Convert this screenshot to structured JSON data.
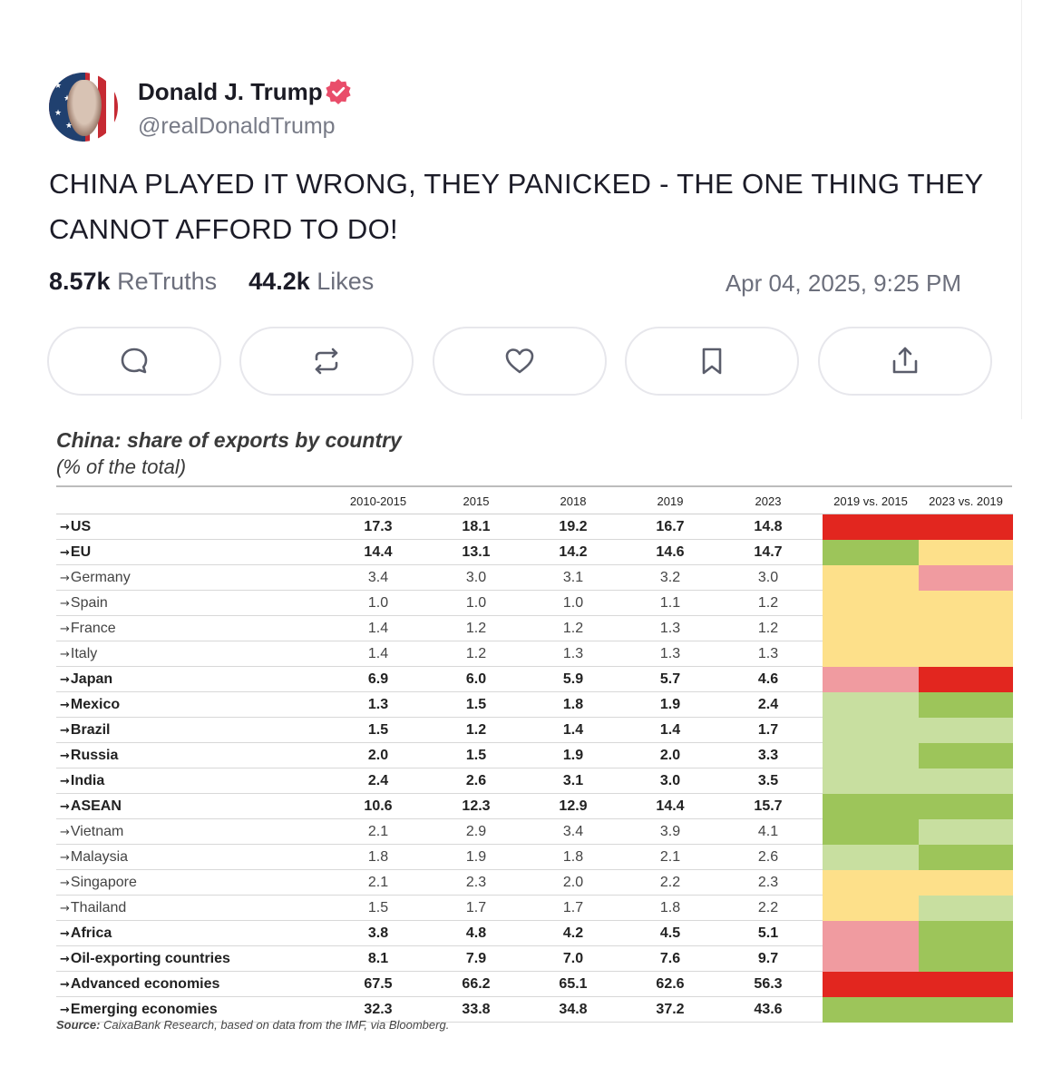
{
  "post": {
    "author_name": "Donald J. Trump",
    "handle": "@realDonaldTrump",
    "text": "CHINA PLAYED IT WRONG, THEY PANICKED - THE ONE THING THEY CANNOT AFFORD TO DO!",
    "retruths_count": "8.57k",
    "retruths_label": "ReTruths",
    "likes_count": "44.2k",
    "likes_label": "Likes",
    "timestamp": "Apr 04, 2025, 9:25 PM",
    "actions": [
      "reply-icon",
      "retruth-icon",
      "like-icon",
      "bookmark-icon",
      "share-icon"
    ],
    "colors": {
      "verified": "#e94d6a",
      "text": "#1c1c28",
      "muted": "#6c6f7c"
    }
  },
  "table": {
    "title": "China: share of exports by country",
    "subtitle": "(% of the total)",
    "headers": [
      "",
      "2010-2015",
      "2015",
      "2018",
      "2019",
      "2023",
      "2019 vs. 2015",
      "2023 vs. 2019"
    ],
    "rows": [
      {
        "country": "US",
        "bold": true,
        "values": [
          "17.3",
          "18.1",
          "19.2",
          "16.7",
          "14.8"
        ],
        "c1": "red",
        "c2": "red"
      },
      {
        "country": "EU",
        "bold": true,
        "values": [
          "14.4",
          "13.1",
          "14.2",
          "14.6",
          "14.7"
        ],
        "c1": "green",
        "c2": "yellow"
      },
      {
        "country": "Germany",
        "bold": false,
        "values": [
          "3.4",
          "3.0",
          "3.1",
          "3.2",
          "3.0"
        ],
        "c1": "yellow",
        "c2": "pink"
      },
      {
        "country": "Spain",
        "bold": false,
        "values": [
          "1.0",
          "1.0",
          "1.0",
          "1.1",
          "1.2"
        ],
        "c1": "yellow",
        "c2": "yellow"
      },
      {
        "country": "France",
        "bold": false,
        "values": [
          "1.4",
          "1.2",
          "1.2",
          "1.3",
          "1.2"
        ],
        "c1": "yellow",
        "c2": "yellow"
      },
      {
        "country": "Italy",
        "bold": false,
        "values": [
          "1.4",
          "1.2",
          "1.3",
          "1.3",
          "1.3"
        ],
        "c1": "yellow",
        "c2": "yellow"
      },
      {
        "country": "Japan",
        "bold": true,
        "values": [
          "6.9",
          "6.0",
          "5.9",
          "5.7",
          "4.6"
        ],
        "c1": "pink",
        "c2": "red"
      },
      {
        "country": "Mexico",
        "bold": true,
        "values": [
          "1.3",
          "1.5",
          "1.8",
          "1.9",
          "2.4"
        ],
        "c1": "lightgreen",
        "c2": "green"
      },
      {
        "country": "Brazil",
        "bold": true,
        "values": [
          "1.5",
          "1.2",
          "1.4",
          "1.4",
          "1.7"
        ],
        "c1": "lightgreen",
        "c2": "lightgreen"
      },
      {
        "country": "Russia",
        "bold": true,
        "values": [
          "2.0",
          "1.5",
          "1.9",
          "2.0",
          "3.3"
        ],
        "c1": "lightgreen",
        "c2": "green"
      },
      {
        "country": "India",
        "bold": true,
        "values": [
          "2.4",
          "2.6",
          "3.1",
          "3.0",
          "3.5"
        ],
        "c1": "lightgreen",
        "c2": "lightgreen"
      },
      {
        "country": "ASEAN",
        "bold": true,
        "values": [
          "10.6",
          "12.3",
          "12.9",
          "14.4",
          "15.7"
        ],
        "c1": "green",
        "c2": "green"
      },
      {
        "country": "Vietnam",
        "bold": false,
        "values": [
          "2.1",
          "2.9",
          "3.4",
          "3.9",
          "4.1"
        ],
        "c1": "green",
        "c2": "lightgreen"
      },
      {
        "country": "Malaysia",
        "bold": false,
        "values": [
          "1.8",
          "1.9",
          "1.8",
          "2.1",
          "2.6"
        ],
        "c1": "lightgreen",
        "c2": "green"
      },
      {
        "country": "Singapore",
        "bold": false,
        "values": [
          "2.1",
          "2.3",
          "2.0",
          "2.2",
          "2.3"
        ],
        "c1": "yellow",
        "c2": "yellow"
      },
      {
        "country": "Thailand",
        "bold": false,
        "values": [
          "1.5",
          "1.7",
          "1.7",
          "1.8",
          "2.2"
        ],
        "c1": "yellow",
        "c2": "lightgreen"
      },
      {
        "country": "Africa",
        "bold": true,
        "values": [
          "3.8",
          "4.8",
          "4.2",
          "4.5",
          "5.1"
        ],
        "c1": "pink",
        "c2": "green"
      },
      {
        "country": "Oil-exporting countries",
        "bold": true,
        "values": [
          "8.1",
          "7.9",
          "7.0",
          "7.6",
          "9.7"
        ],
        "c1": "pink",
        "c2": "green"
      },
      {
        "country": "Advanced economies",
        "bold": true,
        "values": [
          "67.5",
          "66.2",
          "65.1",
          "62.6",
          "56.3"
        ],
        "c1": "red",
        "c2": "red"
      },
      {
        "country": "Emerging economies",
        "bold": true,
        "values": [
          "32.3",
          "33.8",
          "34.8",
          "37.2",
          "43.6"
        ],
        "c1": "green",
        "c2": "green"
      }
    ],
    "colors": {
      "red": "#e2261f",
      "green": "#9dc55a",
      "lightgreen": "#c8dfa0",
      "yellow": "#fde08a",
      "pink": "#f09ba0"
    },
    "source_label": "Source:",
    "source_text": " CaixaBank Research, based on data from the IMF, via Bloomberg."
  }
}
